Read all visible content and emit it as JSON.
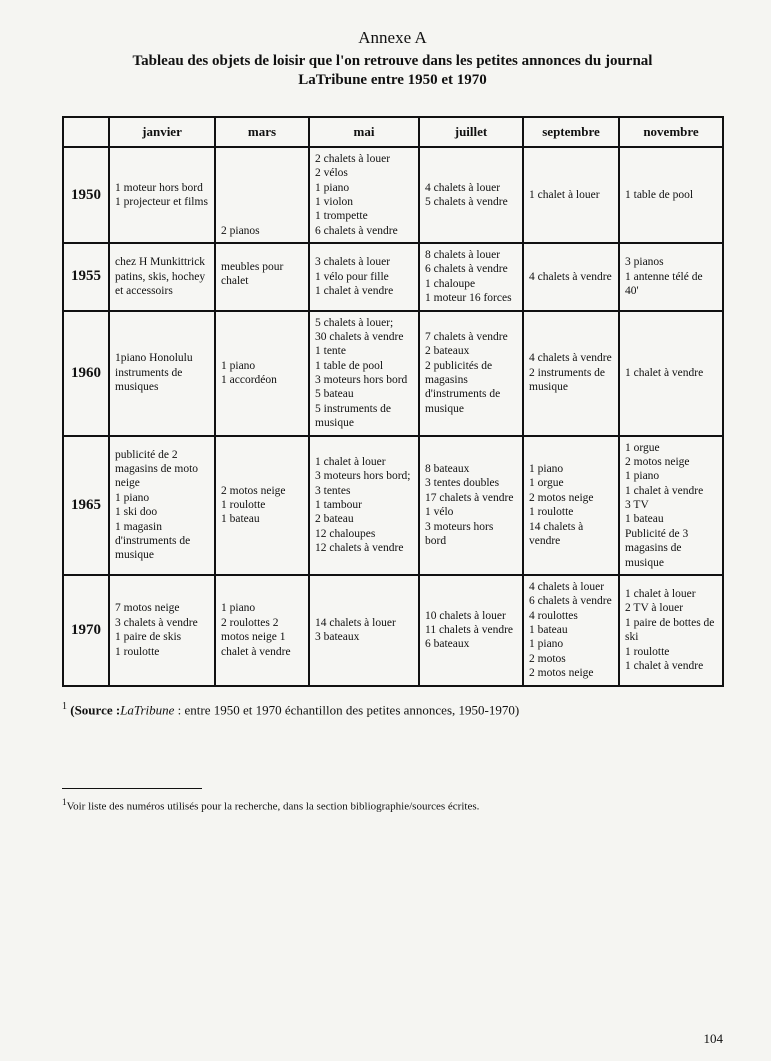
{
  "header": {
    "annexe": "Annexe A",
    "title_line1": "Tableau des objets de loisir que l'on retrouve dans les petites annonces du journal",
    "title_line2": "LaTribune entre 1950 et 1970"
  },
  "table": {
    "columns": [
      "",
      "janvier",
      "mars",
      "mai",
      "juillet",
      "septembre",
      "novembre"
    ],
    "rows": [
      {
        "year": "1950",
        "janvier": "1 moteur hors bord\n1 projecteur et films",
        "mars": "2 pianos",
        "mai": "2 chalets à louer\n2 vélos\n1 piano\n1 violon\n1 trompette\n6 chalets à vendre",
        "juillet": "4 chalets à louer\n5 chalets à vendre",
        "septembre": "1 chalet à louer",
        "novembre": "1 table de pool"
      },
      {
        "year": "1955",
        "janvier": "chez H Munkittrick patins, skis, hochey et accessoirs",
        "mars": "meubles pour chalet",
        "mai": "3 chalets à louer\n1 vélo pour fille\n1 chalet à vendre",
        "juillet": "8 chalets à louer\n6 chalets à vendre\n1 chaloupe\n1 moteur 16 forces",
        "septembre": "4 chalets à vendre",
        "novembre": "3 pianos\n1 antenne télé de 40'"
      },
      {
        "year": "1960",
        "janvier": "1piano Honolulu instruments de musiques",
        "mars": "1 piano\n1 accordéon",
        "mai": "5 chalets à louer;\n30 chalets à vendre\n1 tente\n1 table de pool\n3 moteurs hors bord\n5 bateau\n5 instruments de musique",
        "juillet": "7 chalets à vendre\n2 bateaux\n2 publicités de magasins d'instruments de musique",
        "septembre": "4 chalets à vendre\n2 instruments de musique",
        "novembre": "1 chalet à vendre"
      },
      {
        "year": "1965",
        "janvier": "publicité de 2 magasins de moto neige\n1 piano\n1 ski doo\n1 magasin d'instruments de musique",
        "mars": "2 motos neige\n1 roulotte\n1 bateau",
        "mai": "1 chalet à louer\n3 moteurs hors bord;\n3 tentes\n1 tambour\n2 bateau\n12 chaloupes\n12 chalets à vendre",
        "juillet": "8 bateaux\n3 tentes doubles\n17 chalets à vendre\n1 vélo\n3 moteurs hors bord",
        "septembre": "1 piano\n1 orgue\n2 motos neige\n1 roulotte\n14 chalets à vendre",
        "novembre": "1 orgue\n2 motos neige\n1 piano\n1 chalet à vendre\n3 TV\n1 bateau\nPublicité de 3 magasins de musique"
      },
      {
        "year": "1970",
        "janvier": "7 motos neige\n3 chalets à vendre\n1 paire de skis\n1 roulotte",
        "mars": "1 piano\n2 roulottes    2 motos neige 1 chalet à vendre",
        "mai": "14 chalets à louer\n3 bateaux",
        "juillet": "10 chalets à louer\n11 chalets à vendre\n6 bateaux",
        "septembre": "4 chalets à louer\n6 chalets à vendre\n4 roulottes\n1 bateau\n1 piano\n2 motos\n2 motos neige",
        "novembre": "1 chalet à louer\n2 TV à louer\n1 paire de bottes de ski\n1 roulotte\n1 chalet à vendre"
      }
    ]
  },
  "source": {
    "sup": "1",
    "label": "(Source :",
    "journal": "LaTribune",
    "rest": " : entre 1950 et 1970 échantillon des petites annonces, 1950-1970)"
  },
  "footnote": {
    "sup": "1",
    "text": "Voir liste des numéros utilisés pour la recherche, dans la section bibliographie/sources écrites."
  },
  "page_number": "104",
  "style": {
    "border_color": "#111111",
    "background": "#f5f5f2",
    "font_body_pt": 11.5,
    "font_header_pt": 13,
    "font_year_pt": 15,
    "font_title_pt": 15
  }
}
